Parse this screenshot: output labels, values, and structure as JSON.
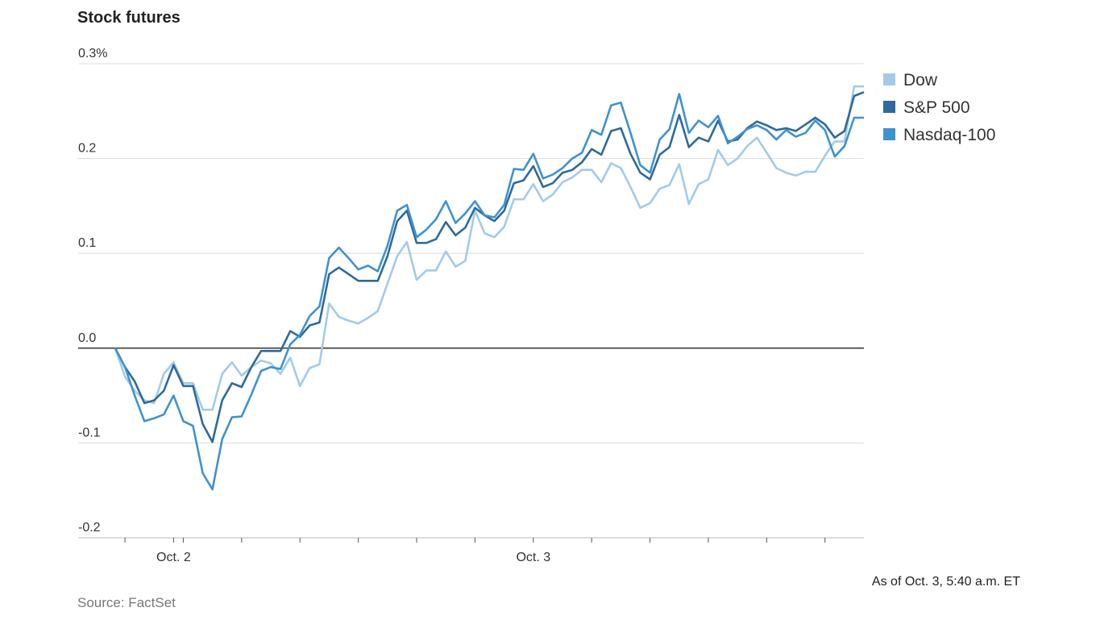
{
  "chart_data": {
    "type": "line",
    "title": "Stock futures",
    "note": "As of Oct. 3, 5:40 a.m. ET",
    "source": "Source: FactSet",
    "categories": [
      null,
      null,
      null,
      null,
      null,
      null,
      "Oct. 2",
      null,
      null,
      null,
      null,
      null,
      null,
      null,
      null,
      null,
      null,
      null,
      null,
      null,
      null,
      null,
      null,
      null,
      null,
      null,
      null,
      null,
      null,
      null,
      null,
      null,
      null,
      null,
      null,
      null,
      null,
      null,
      null,
      null,
      null,
      null,
      null,
      "Oct. 3",
      null,
      null,
      null,
      null,
      null,
      null,
      null,
      null,
      null,
      null,
      null,
      null,
      null,
      null,
      null,
      null,
      null,
      null,
      null,
      null,
      null,
      null,
      null,
      null,
      null,
      null,
      null,
      null,
      null,
      null,
      null,
      null,
      null,
      null
    ],
    "ylim": [
      -0.2,
      0.3
    ],
    "yticks": [
      {
        "value": 0.3,
        "label": "0.3%"
      },
      0.2,
      0.1,
      {
        "value": 0,
        "label": "0.0"
      },
      -0.1,
      -0.2
    ],
    "grid": true,
    "legend": "right",
    "series": [
      {
        "name": "Dow",
        "color": "#a3cbe9",
        "values": [
          0,
          -0.03,
          -0.045,
          -0.055,
          -0.058,
          -0.027,
          -0.015,
          -0.037,
          -0.037,
          -0.065,
          -0.065,
          -0.027,
          -0.015,
          -0.029,
          -0.02,
          -0.013,
          -0.016,
          -0.027,
          -0.01,
          -0.04,
          -0.021,
          -0.017,
          0.047,
          0.033,
          0.029,
          0.026,
          0.032,
          0.039,
          0.068,
          0.097,
          0.112,
          0.072,
          0.082,
          0.082,
          0.102,
          0.086,
          0.092,
          0.145,
          0.121,
          0.117,
          0.128,
          0.157,
          0.157,
          0.173,
          0.155,
          0.162,
          0.175,
          0.18,
          0.188,
          0.188,
          0.175,
          0.195,
          0.19,
          0.17,
          0.148,
          0.153,
          0.168,
          0.172,
          0.194,
          0.152,
          0.173,
          0.178,
          0.209,
          0.193,
          0.2,
          0.213,
          0.222,
          0.206,
          0.19,
          0.185,
          0.182,
          0.186,
          0.186,
          0.203,
          0.218,
          0.218,
          0.276,
          0.276
        ]
      },
      {
        "name": "S&P 500",
        "color": "#2e6a9c",
        "values": [
          0,
          -0.02,
          -0.035,
          -0.058,
          -0.055,
          -0.045,
          -0.018,
          -0.04,
          -0.04,
          -0.08,
          -0.099,
          -0.055,
          -0.037,
          -0.041,
          -0.02,
          -0.003,
          -0.003,
          -0.003,
          0.018,
          0.012,
          0.024,
          0.027,
          0.078,
          0.085,
          0.078,
          0.071,
          0.071,
          0.071,
          0.097,
          0.134,
          0.145,
          0.111,
          0.111,
          0.115,
          0.133,
          0.119,
          0.127,
          0.148,
          0.14,
          0.134,
          0.145,
          0.174,
          0.177,
          0.192,
          0.17,
          0.174,
          0.185,
          0.188,
          0.196,
          0.21,
          0.204,
          0.229,
          0.232,
          0.205,
          0.185,
          0.178,
          0.204,
          0.212,
          0.246,
          0.212,
          0.222,
          0.218,
          0.24,
          0.218,
          0.22,
          0.232,
          0.239,
          0.235,
          0.23,
          0.232,
          0.229,
          0.236,
          0.243,
          0.236,
          0.222,
          0.229,
          0.266,
          0.27
        ]
      },
      {
        "name": "Nasdaq-100",
        "color": "#3f92cf",
        "values": [
          0,
          -0.02,
          -0.05,
          -0.077,
          -0.074,
          -0.07,
          -0.05,
          -0.077,
          -0.082,
          -0.132,
          -0.149,
          -0.096,
          -0.073,
          -0.072,
          -0.049,
          -0.024,
          -0.02,
          -0.022,
          0.004,
          0.014,
          0.034,
          0.044,
          0.095,
          0.106,
          0.095,
          0.083,
          0.087,
          0.081,
          0.108,
          0.145,
          0.151,
          0.117,
          0.125,
          0.136,
          0.155,
          0.132,
          0.142,
          0.155,
          0.14,
          0.138,
          0.151,
          0.189,
          0.188,
          0.205,
          0.179,
          0.183,
          0.19,
          0.2,
          0.206,
          0.23,
          0.225,
          0.256,
          0.259,
          0.227,
          0.193,
          0.185,
          0.22,
          0.231,
          0.268,
          0.227,
          0.24,
          0.233,
          0.245,
          0.216,
          0.223,
          0.231,
          0.235,
          0.23,
          0.22,
          0.23,
          0.223,
          0.227,
          0.24,
          0.23,
          0.202,
          0.213,
          0.243,
          0.243
        ]
      }
    ]
  }
}
